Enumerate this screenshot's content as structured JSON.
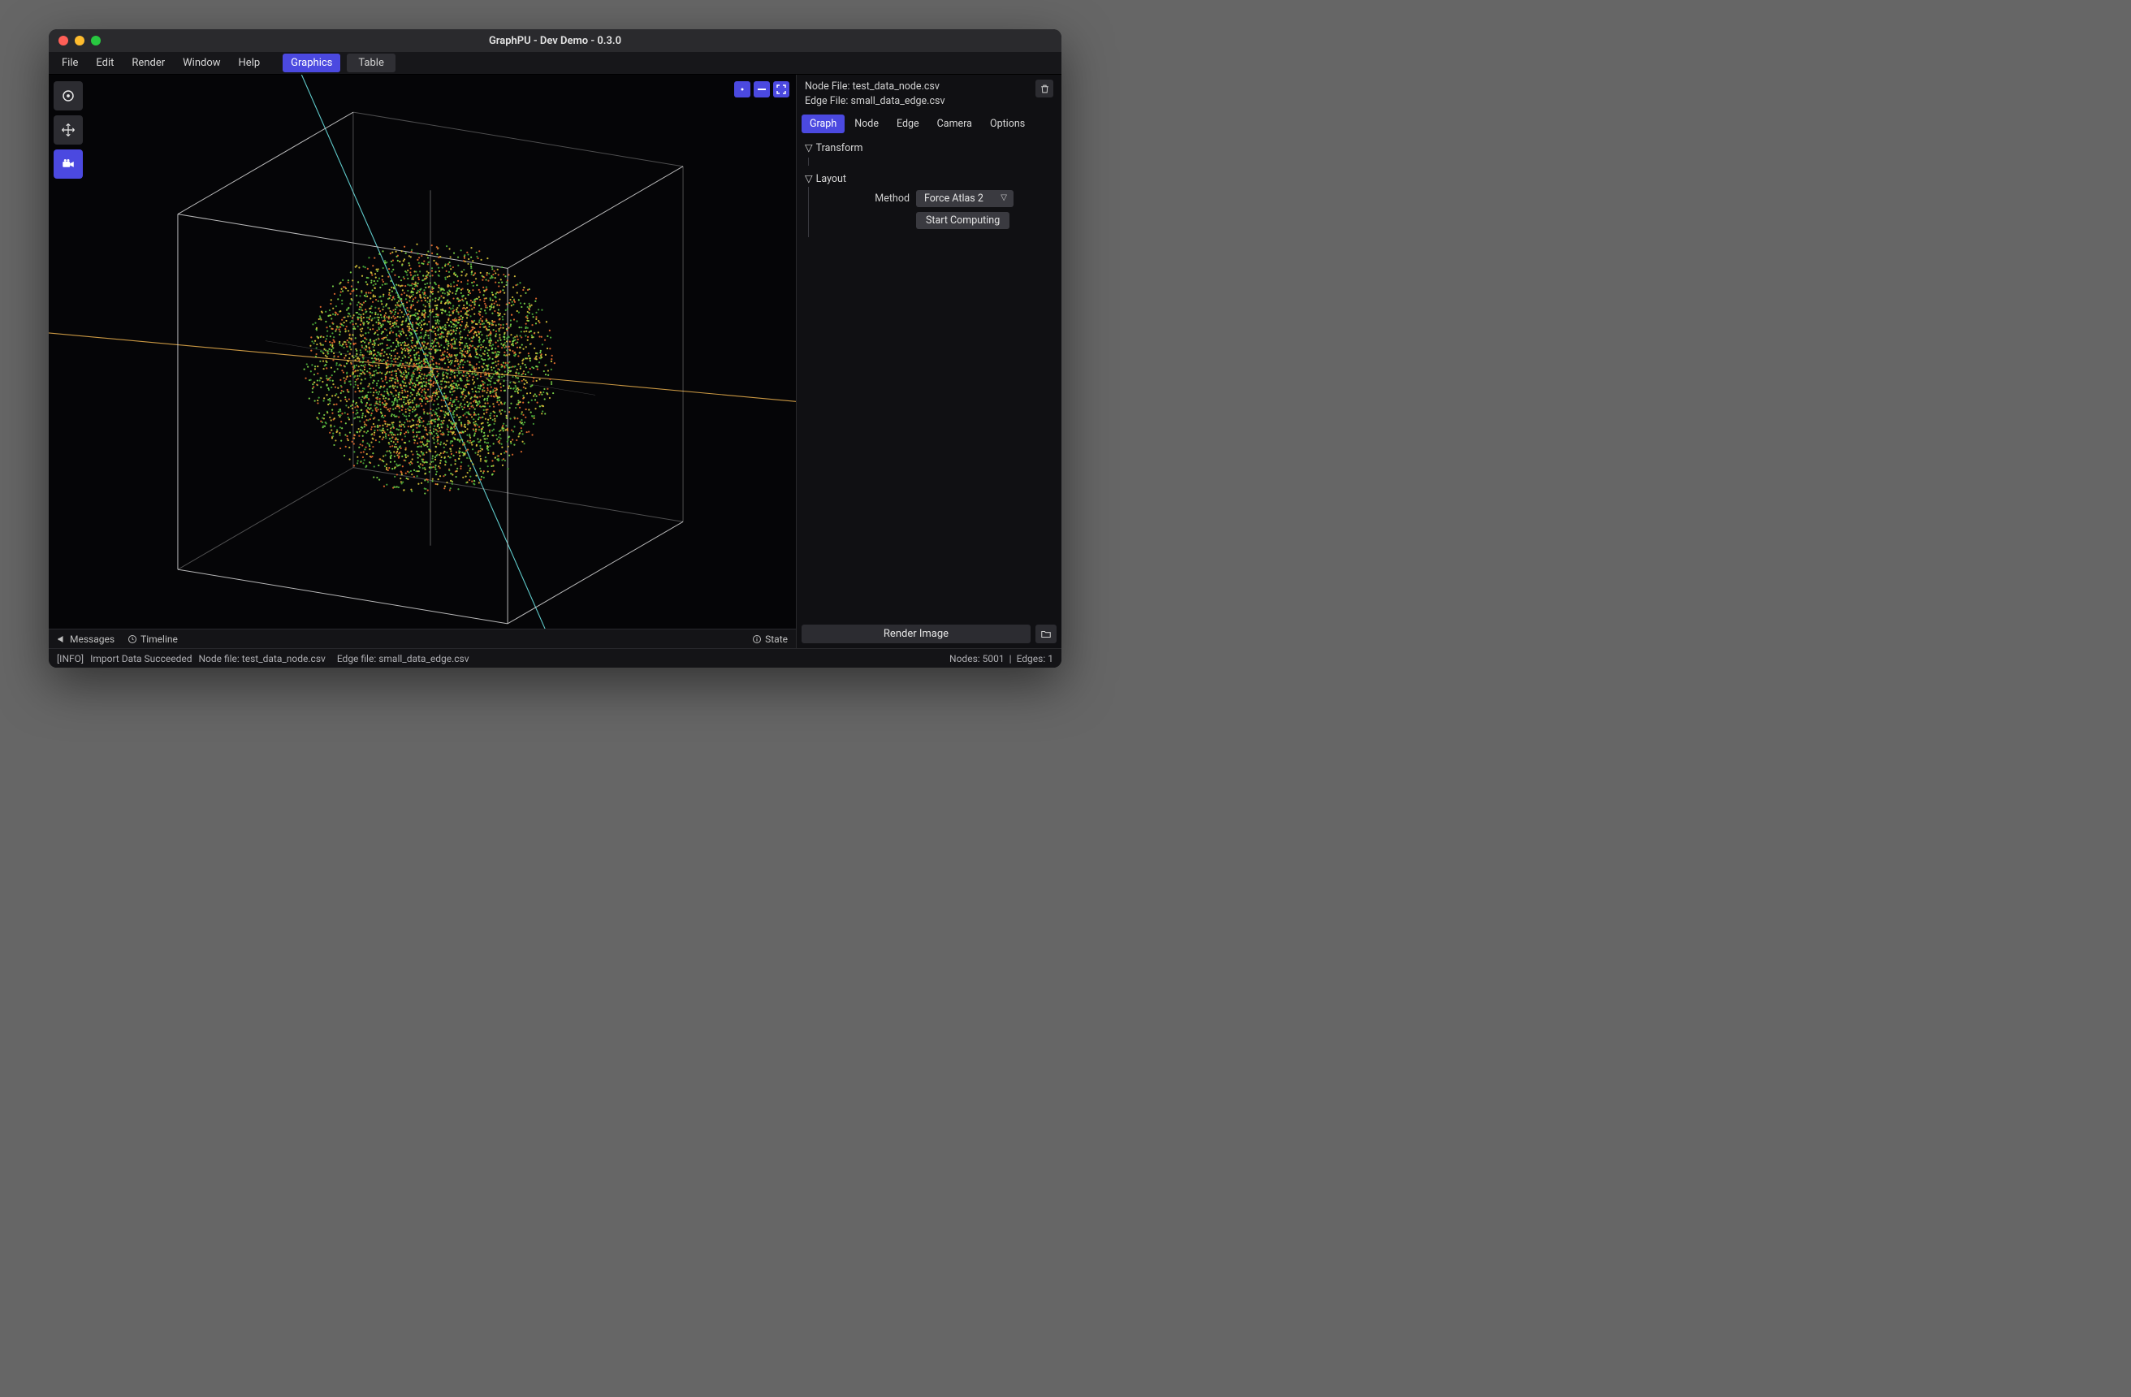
{
  "window": {
    "title": "GraphPU - Dev Demo - 0.3.0"
  },
  "menubar": {
    "items": [
      "File",
      "Edit",
      "Render",
      "Window",
      "Help"
    ],
    "tabs": {
      "graphics": "Graphics",
      "table": "Table",
      "active": "Graphics"
    }
  },
  "viewport": {
    "background_color": "#050507",
    "axis_colors": {
      "diag1": "#69e0e0",
      "diag2": "#e0a94a"
    },
    "cube_edge_color": "#d8d8d8",
    "point_colors": [
      "#7cd64a",
      "#e06a2e",
      "#d6c23a",
      "#4aa83a"
    ],
    "point_count_approx": 4200,
    "sphere_radius_rel": 0.44,
    "camera": {
      "azimuth_deg": 28,
      "elevation_deg": 18
    }
  },
  "bottombar": {
    "messages": "Messages",
    "timeline": "Timeline",
    "state": "State"
  },
  "sidepanel": {
    "node_file_label": "Node File:",
    "node_file": "test_data_node.csv",
    "edge_file_label": "Edge File:",
    "edge_file": "small_data_edge.csv",
    "tabs": [
      "Graph",
      "Node",
      "Edge",
      "Camera",
      "Options"
    ],
    "active_tab": "Graph",
    "sections": {
      "transform": {
        "title": "Transform"
      },
      "layout": {
        "title": "Layout",
        "method_label": "Method",
        "method_value": "Force Atlas 2",
        "compute_label": "Start Computing"
      }
    },
    "render_button": "Render Image"
  },
  "status": {
    "level": "[INFO]",
    "msg1": "Import Data Succeeded",
    "msg2": "Node file: test_data_node.csv",
    "msg3": "Edge file: small_data_edge.csv",
    "nodes_label": "Nodes:",
    "nodes": "5001",
    "edges_label": "Edges:",
    "edges": "1"
  },
  "colors": {
    "accent": "#4b49e0",
    "panel": "#101013",
    "control": "#3a3a40"
  }
}
